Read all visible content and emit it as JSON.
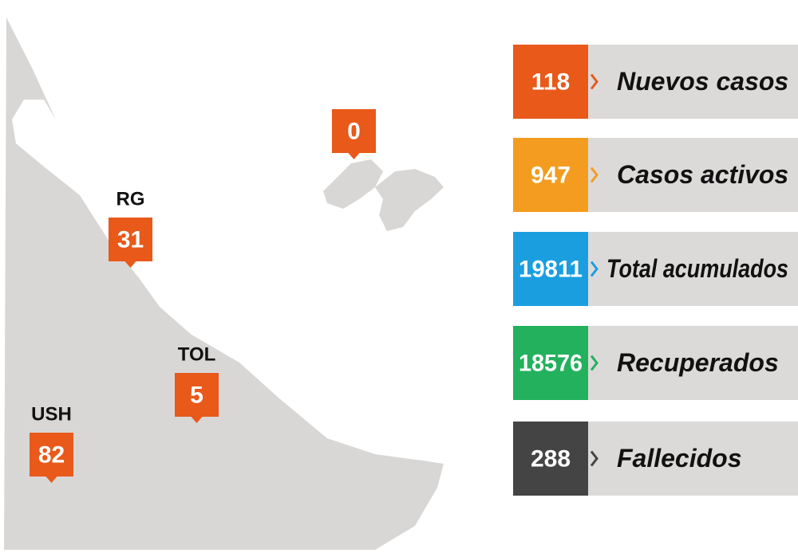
{
  "map": {
    "marker_color": "#e8591a",
    "markers": [
      {
        "label": "RG",
        "value": 31
      },
      {
        "label": "TOL",
        "value": 5
      },
      {
        "label": "USH",
        "value": 82
      },
      {
        "value": 0
      }
    ]
  },
  "stats": [
    {
      "value": 118,
      "label": "Nuevos casos",
      "color": "#e8591a"
    },
    {
      "value": 947,
      "label": "Casos activos",
      "color": "#f39c1f"
    },
    {
      "value": 19811,
      "label": "Total acumulados",
      "color": "#1a9ee0"
    },
    {
      "value": 18576,
      "label": "Recuperados",
      "color": "#23b15d"
    },
    {
      "value": 288,
      "label": "Fallecidos",
      "color": "#444444"
    }
  ]
}
